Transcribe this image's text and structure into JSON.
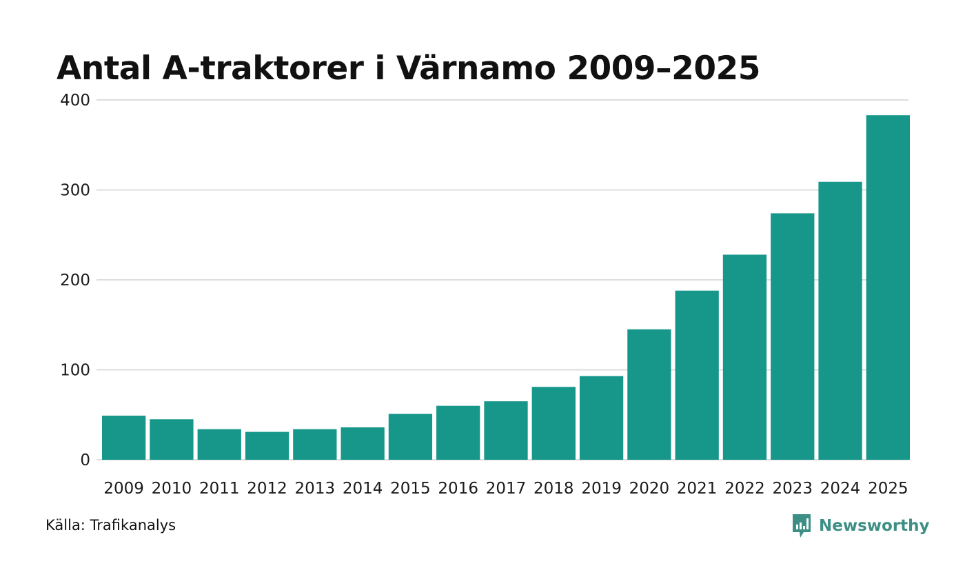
{
  "chart_data": {
    "type": "bar",
    "title": "Antal A-traktorer i Värnamo 2009–2025",
    "xlabel": "",
    "ylabel": "",
    "categories": [
      "2009",
      "2010",
      "2011",
      "2012",
      "2013",
      "2014",
      "2015",
      "2016",
      "2017",
      "2018",
      "2019",
      "2020",
      "2021",
      "2022",
      "2023",
      "2024",
      "2025"
    ],
    "values": [
      49,
      45,
      34,
      31,
      34,
      36,
      51,
      60,
      65,
      81,
      93,
      145,
      188,
      228,
      274,
      309,
      383
    ],
    "ylim": [
      0,
      400
    ],
    "yticks": [
      "0",
      "100",
      "200",
      "300",
      "400"
    ],
    "grid": true,
    "bar_color": "#16978a",
    "grid_color": "#dddddd"
  },
  "footer": {
    "source": "Källa: Trafikanalys",
    "brand": "Newsworthy",
    "brand_icon": "newsworthy-logo-icon",
    "brand_color": "#3d8f86"
  }
}
